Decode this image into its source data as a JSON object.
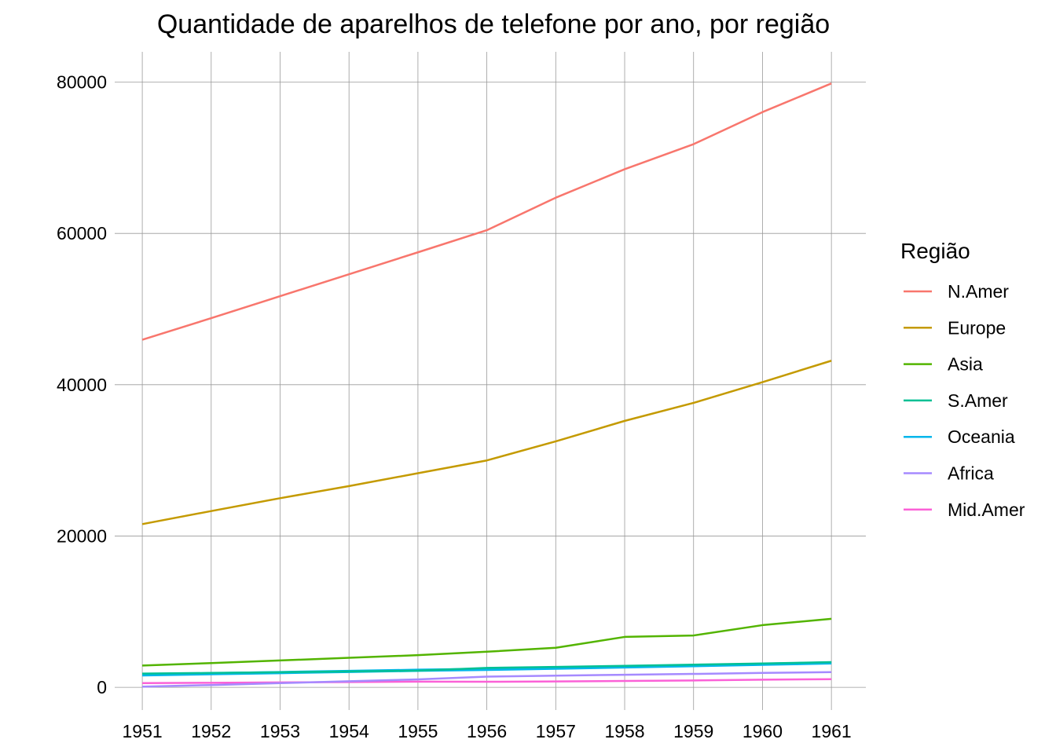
{
  "chart_data": {
    "type": "line",
    "title": "Quantidade de aparelhos de telefone por ano, por região",
    "xlabel": "",
    "ylabel": "",
    "x": [
      1951,
      1952,
      1953,
      1954,
      1955,
      1956,
      1957,
      1958,
      1959,
      1960,
      1961
    ],
    "x_ticks": [
      "1951",
      "1952",
      "1953",
      "1954",
      "1955",
      "1956",
      "1957",
      "1958",
      "1959",
      "1960",
      "1961"
    ],
    "y_ticks": [
      0,
      20000,
      40000,
      60000,
      80000
    ],
    "y_tick_labels": [
      "0",
      "20000",
      "40000",
      "60000",
      "80000"
    ],
    "xlim": [
      1950.6,
      1961.5
    ],
    "ylim": [
      -3000,
      84000
    ],
    "grid": true,
    "legend": {
      "title": "Região",
      "position": "right"
    },
    "series": [
      {
        "name": "N.Amer",
        "color": "#F8766D",
        "width": 2.5,
        "values": [
          45939,
          48800,
          51700,
          54600,
          57500,
          60423,
          64721,
          68484,
          71799,
          76036,
          79831
        ]
      },
      {
        "name": "Europe",
        "color": "#C49A00",
        "width": 2.5,
        "values": [
          21574,
          23300,
          25000,
          26600,
          28300,
          29990,
          32510,
          35218,
          37598,
          40341,
          43173
        ]
      },
      {
        "name": "Asia",
        "color": "#53B400",
        "width": 2.5,
        "values": [
          2876,
          3200,
          3550,
          3900,
          4250,
          4708,
          5230,
          6662,
          6856,
          8220,
          9053
        ]
      },
      {
        "name": "S.Amer",
        "color": "#00C094",
        "width": 2.5,
        "values": [
          1815,
          1900,
          2000,
          2100,
          2200,
          2568,
          2695,
          2845,
          3000,
          3145,
          3338
        ]
      },
      {
        "name": "Oceania",
        "color": "#00B6EB",
        "width": 4,
        "values": [
          1646,
          1800,
          1950,
          2100,
          2250,
          2366,
          2526,
          2691,
          2868,
          3054,
          3224
        ]
      },
      {
        "name": "Africa",
        "color": "#A58AFF",
        "width": 2.5,
        "values": [
          89,
          300,
          550,
          800,
          1050,
          1411,
          1546,
          1663,
          1769,
          1905,
          2005
        ]
      },
      {
        "name": "Mid.Amer",
        "color": "#FB61D7",
        "width": 2.5,
        "values": [
          555,
          600,
          650,
          700,
          750,
          733,
          773,
          836,
          911,
          1008,
          1076
        ]
      }
    ]
  }
}
